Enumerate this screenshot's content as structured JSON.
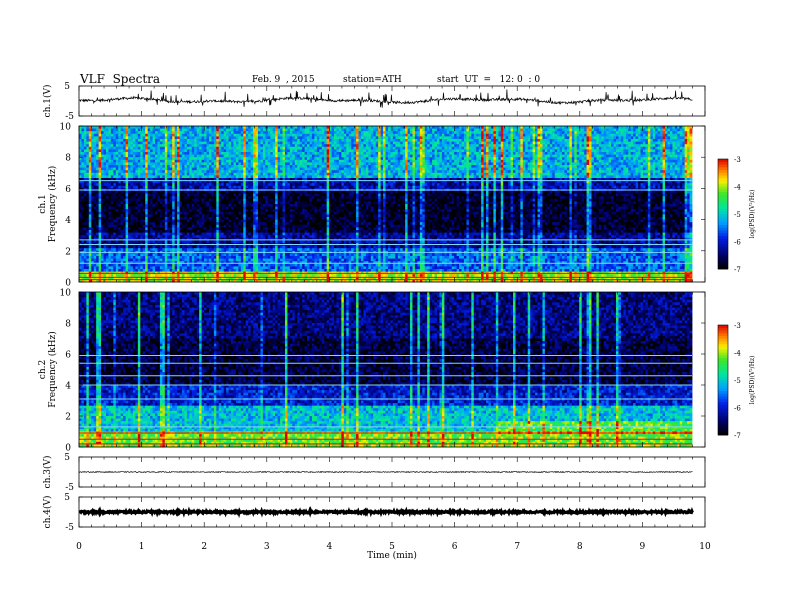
{
  "header": {
    "title": "VLF  Spectra",
    "date": "Feb. 9  , 2015",
    "station": "station=ATH",
    "start": "start  UT  =   12: 0  : 0"
  },
  "chart_data": [
    {
      "type": "line",
      "panel": "ch1-waveform",
      "ylabel": "ch.1(V)",
      "ylim": [
        -5,
        5
      ],
      "yticks": [
        "5",
        "-5"
      ],
      "xlim": [
        0,
        10
      ],
      "series": [
        {
          "values_description_kind": "waveform",
          "baseline": 0.2,
          "noise_amplitude": 0.4,
          "spike_amplitude": 2.5
        }
      ]
    },
    {
      "type": "heatmap",
      "panel": "ch1-spectrogram",
      "ylabel": "ch.1\nFrequency  (kHz)",
      "ylim": [
        0,
        10
      ],
      "yticks": [
        "0",
        "2",
        "4",
        "6",
        "8",
        "10"
      ],
      "xlim": [
        0,
        9.8
      ],
      "colorbar": {
        "label": "log(PSD)(V²/Hz)",
        "range": [
          -7,
          -3
        ],
        "ticks": [
          "-3",
          "-4",
          "-5",
          "-6",
          "-7"
        ]
      },
      "bands": [
        {
          "from_khz": 0,
          "to_khz": 0.6,
          "level": -4.0
        },
        {
          "from_khz": 0.6,
          "to_khz": 2.2,
          "level": -5.6
        },
        {
          "from_khz": 2.2,
          "to_khz": 3.2,
          "level": -6.3
        },
        {
          "from_khz": 3.2,
          "to_khz": 5.8,
          "level": -6.8
        },
        {
          "from_khz": 5.8,
          "to_khz": 6.6,
          "level": -6.2
        },
        {
          "from_khz": 6.6,
          "to_khz": 10,
          "level": -5.2
        }
      ]
    },
    {
      "type": "heatmap",
      "panel": "ch2-spectrogram",
      "ylabel": "ch.2\nFrequency  (kHz)",
      "ylim": [
        0,
        10
      ],
      "yticks": [
        "0",
        "2",
        "4",
        "6",
        "8",
        "10"
      ],
      "xlim": [
        0,
        9.8
      ],
      "colorbar": {
        "label": "log(PSD)(V²/Hz)",
        "range": [
          -7,
          -3
        ],
        "ticks": [
          "-3",
          "-4",
          "-5",
          "-6",
          "-7"
        ]
      },
      "bands": [
        {
          "from_khz": 0,
          "to_khz": 1.0,
          "level": -4.2
        },
        {
          "from_khz": 1.0,
          "to_khz": 2.6,
          "level": -5.1
        },
        {
          "from_khz": 2.6,
          "to_khz": 4.0,
          "level": -6.0
        },
        {
          "from_khz": 4.0,
          "to_khz": 7.0,
          "level": -6.7
        },
        {
          "from_khz": 7.0,
          "to_khz": 10,
          "level": -6.4
        }
      ]
    },
    {
      "type": "line",
      "panel": "ch3-waveform",
      "ylabel": "ch.3(V)",
      "ylim": [
        -5,
        5
      ],
      "yticks": [
        "5",
        "-5"
      ],
      "xlim": [
        0,
        10
      ],
      "series": [
        {
          "baseline": 0.0,
          "noise_amplitude": 0.15
        }
      ]
    },
    {
      "type": "line",
      "panel": "ch4-waveform",
      "ylabel": "ch.4(V)",
      "ylim": [
        -5,
        5
      ],
      "yticks": [
        "5",
        "-5"
      ],
      "xlim": [
        0,
        10
      ],
      "xlabel": "Time  (min)",
      "xticks": [
        "0",
        "1",
        "2",
        "3",
        "4",
        "5",
        "6",
        "7",
        "8",
        "9",
        "10"
      ],
      "series": [
        {
          "baseline": 0.0,
          "noise_amplitude": 0.3,
          "thick": true
        }
      ]
    }
  ]
}
